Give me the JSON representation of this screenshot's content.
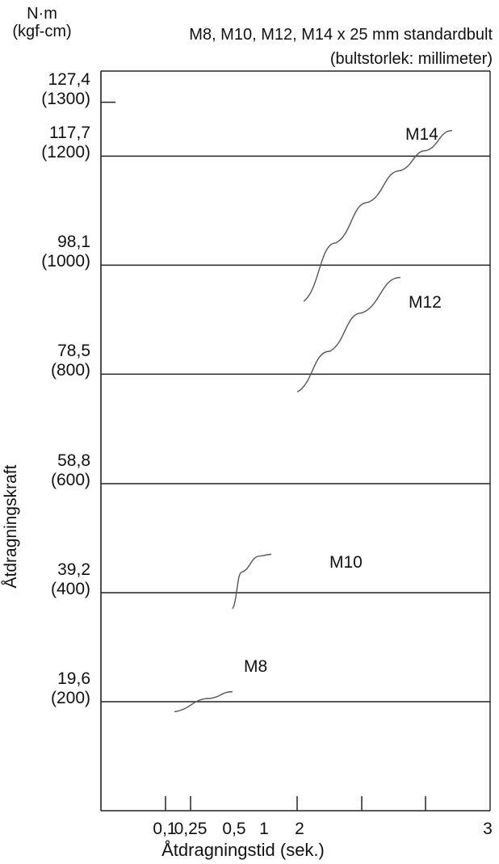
{
  "chart_data": {
    "type": "line",
    "title": "M8, M10, M12, M14 x 25 mm standardbult",
    "subtitle": "(bultstorlek: millimeter)",
    "unit_label": [
      "N·m",
      "(kgf-cm)"
    ],
    "xlabel": "Åtdragningstid (sek.)",
    "ylabel": "Åtdragningskraft",
    "y_ticks": [
      {
        "value": 19.6,
        "label": "19,6",
        "sub": "(200)",
        "gridline": true
      },
      {
        "value": 39.2,
        "label": "39,2",
        "sub": "(400)",
        "gridline": true
      },
      {
        "value": 58.8,
        "label": "58,8",
        "sub": "(600)",
        "gridline": true
      },
      {
        "value": 78.5,
        "label": "78,5",
        "sub": "(800)",
        "gridline": true
      },
      {
        "value": 98.1,
        "label": "98,1",
        "sub": "(1000)",
        "gridline": true
      },
      {
        "value": 117.7,
        "label": "117,7",
        "sub": "(1200)",
        "gridline": true
      },
      {
        "value": 127.4,
        "label": "127,4",
        "sub": "(1300)",
        "gridline": false
      }
    ],
    "x_ticks": [
      {
        "label": "0,1",
        "tick": true
      },
      {
        "label": "0,25",
        "tick": true
      },
      {
        "label": "0,5",
        "tick": false
      },
      {
        "label": "1",
        "tick": false
      },
      {
        "label": "2",
        "tick": true
      },
      {
        "label": "",
        "tick": true
      },
      {
        "label": "",
        "tick": true
      },
      {
        "label": "3",
        "tick": false
      }
    ],
    "ylim": [
      0,
      133
    ],
    "grid": true,
    "series": [
      {
        "name": "M8",
        "points": [
          [
            0.12,
            17.8
          ],
          [
            0.2,
            20.2
          ],
          [
            0.25,
            21.4
          ]
        ]
      },
      {
        "name": "M10",
        "points": [
          [
            0.25,
            36.3
          ],
          [
            0.5,
            42.9
          ],
          [
            1,
            45.8
          ],
          [
            1.3,
            46.1
          ]
        ]
      },
      {
        "name": "M12",
        "points": [
          [
            2.0,
            75.3
          ],
          [
            2.5,
            82.6
          ],
          [
            3.0,
            89.5
          ],
          [
            3.6,
            95.9
          ]
        ]
      },
      {
        "name": "M14",
        "points": [
          [
            2.1,
            91.6
          ],
          [
            2.6,
            102.1
          ],
          [
            3.1,
            109.4
          ],
          [
            3.6,
            115.1
          ],
          [
            4.0,
            118.7
          ],
          [
            4.4,
            122.3
          ]
        ]
      }
    ]
  }
}
